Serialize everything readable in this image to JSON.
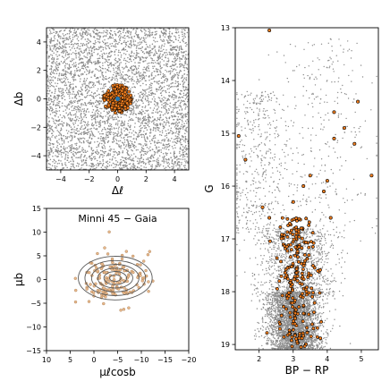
{
  "colors": {
    "field": "#8c8c8c",
    "members": "#f07d1e",
    "member_edge": "#000000",
    "center": "#1f77b4",
    "contour": "#595959",
    "pm_members": "#e8b98c"
  },
  "chart_data": [
    {
      "type": "scatter",
      "panel": "sky",
      "xlabel": "Δℓ",
      "ylabel": "Δb",
      "xlim": [
        -5,
        5
      ],
      "ylim": [
        -5,
        5
      ],
      "xticks": [
        "−4",
        "−2",
        "0",
        "2",
        "4"
      ],
      "xtick_values": [
        -4,
        -2,
        0,
        2,
        4
      ],
      "yticks": [
        "−4",
        "−2",
        "0",
        "2",
        "4"
      ],
      "ytick_values": [
        -4,
        -2,
        0,
        2,
        4
      ],
      "field_stars": {
        "approx_count": 4200,
        "x_range": [
          -5,
          5
        ],
        "y_range": [
          -5,
          5
        ],
        "uniform": true
      },
      "members": {
        "center": [
          0,
          0
        ],
        "radius": 1.0,
        "approx_count": 220
      },
      "cluster_center": [
        0,
        0
      ]
    },
    {
      "type": "scatter",
      "panel": "proper_motion",
      "title": "Minni 45  −  Gaia",
      "xlabel": "μℓcosb",
      "ylabel": "μb",
      "xlim": [
        10,
        -20
      ],
      "ylim": [
        -15,
        15
      ],
      "xticks": [
        "10",
        "5",
        "0",
        "−5",
        "−10",
        "−15",
        "−20"
      ],
      "xtick_values": [
        10,
        5,
        0,
        -5,
        -10,
        -15,
        -20
      ],
      "yticks": [
        "−15",
        "−10",
        "−5",
        "0",
        "5",
        "10",
        "15"
      ],
      "ytick_values": [
        -15,
        -10,
        -5,
        0,
        5,
        10,
        15
      ],
      "members": {
        "center": [
          -4.5,
          0
        ],
        "spread": [
          3.5,
          2.8
        ],
        "approx_count": 160
      },
      "contours": {
        "center": [
          -4.5,
          0.3
        ],
        "levels": [
          {
            "rx": 7.8,
            "ry": 4.6
          },
          {
            "rx": 6.4,
            "ry": 3.7
          },
          {
            "rx": 5.0,
            "ry": 2.9
          },
          {
            "rx": 3.7,
            "ry": 2.1
          },
          {
            "rx": 2.4,
            "ry": 1.4
          },
          {
            "rx": 1.2,
            "ry": 0.7
          }
        ]
      }
    },
    {
      "type": "scatter",
      "panel": "cmd",
      "xlabel": "BP − RP",
      "ylabel": "G",
      "xlim": [
        1.3,
        5.5
      ],
      "ylim": [
        19.1,
        13.0
      ],
      "xticks": [
        "2",
        "3",
        "4",
        "5"
      ],
      "xtick_values": [
        2,
        3,
        4,
        5
      ],
      "yticks": [
        "13",
        "14",
        "15",
        "16",
        "17",
        "18",
        "19"
      ],
      "ytick_values": [
        13,
        14,
        15,
        16,
        17,
        18,
        19
      ],
      "field_stars": {
        "approx_count": 5200
      },
      "members_sequence": {
        "approx_count": 230
      },
      "members_bright": [
        {
          "x": 2.3,
          "y": 13.05
        },
        {
          "x": 4.2,
          "y": 14.6
        },
        {
          "x": 4.9,
          "y": 14.4
        },
        {
          "x": 4.5,
          "y": 14.9
        },
        {
          "x": 4.8,
          "y": 15.2
        },
        {
          "x": 4.2,
          "y": 15.1
        },
        {
          "x": 1.4,
          "y": 15.05
        },
        {
          "x": 1.6,
          "y": 15.5
        },
        {
          "x": 5.3,
          "y": 15.8
        },
        {
          "x": 3.5,
          "y": 15.8
        },
        {
          "x": 3.3,
          "y": 16.0
        },
        {
          "x": 4.0,
          "y": 15.9
        },
        {
          "x": 2.1,
          "y": 16.4
        },
        {
          "x": 3.0,
          "y": 16.3
        },
        {
          "x": 3.9,
          "y": 16.1
        },
        {
          "x": 4.1,
          "y": 16.6
        },
        {
          "x": 2.3,
          "y": 16.6
        }
      ]
    }
  ]
}
